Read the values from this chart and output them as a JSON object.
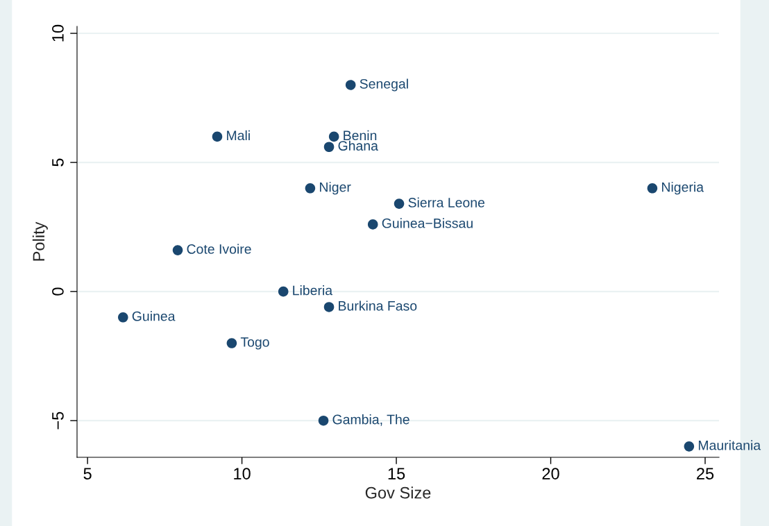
{
  "chart_data": {
    "type": "scatter",
    "xlabel": "Gov Size",
    "ylabel": "Polity",
    "x": [
      13.52,
      9.2,
      12.98,
      12.82,
      12.21,
      23.29,
      15.09,
      14.24,
      7.92,
      11.34,
      12.82,
      6.15,
      9.67,
      12.64,
      24.48
    ],
    "series": [
      {
        "color": "#1a476f",
        "values": [
          8,
          6,
          6,
          5.6,
          4,
          4,
          3.4,
          2.6,
          1.6,
          0,
          -0.6,
          -1,
          -2,
          -5,
          -6
        ]
      }
    ],
    "annotations": [
      {
        "text": "Senegal",
        "x": 13.52,
        "y": 8
      },
      {
        "text": "Mali",
        "x": 9.2,
        "y": 6
      },
      {
        "text": "Benin",
        "x": 12.98,
        "y": 6
      },
      {
        "text": "Ghana",
        "x": 12.82,
        "y": 5.6
      },
      {
        "text": "Niger",
        "x": 12.21,
        "y": 4
      },
      {
        "text": "Nigeria",
        "x": 23.29,
        "y": 4
      },
      {
        "text": "Sierra Leone",
        "x": 15.09,
        "y": 3.4
      },
      {
        "text": "Guinea−Bissau",
        "x": 14.24,
        "y": 2.6
      },
      {
        "text": "Cote Ivoire",
        "x": 7.92,
        "y": 1.6
      },
      {
        "text": "Liberia",
        "x": 11.34,
        "y": 0
      },
      {
        "text": "Burkina Faso",
        "x": 12.82,
        "y": -0.6
      },
      {
        "text": "Guinea",
        "x": 6.15,
        "y": -1
      },
      {
        "text": "Togo",
        "x": 9.67,
        "y": -2
      },
      {
        "text": "Gambia, The",
        "x": 12.64,
        "y": -5
      },
      {
        "text": "Mauritania",
        "x": 24.48,
        "y": -6
      }
    ],
    "xlim": [
      4.66,
      25.45
    ],
    "ylim": [
      -6.42,
      10.27
    ],
    "xticks": [
      5,
      10,
      15,
      20,
      25
    ],
    "yticks": [
      -5,
      0,
      5,
      10
    ],
    "grid": "y",
    "marker": "circle",
    "legend": false
  }
}
